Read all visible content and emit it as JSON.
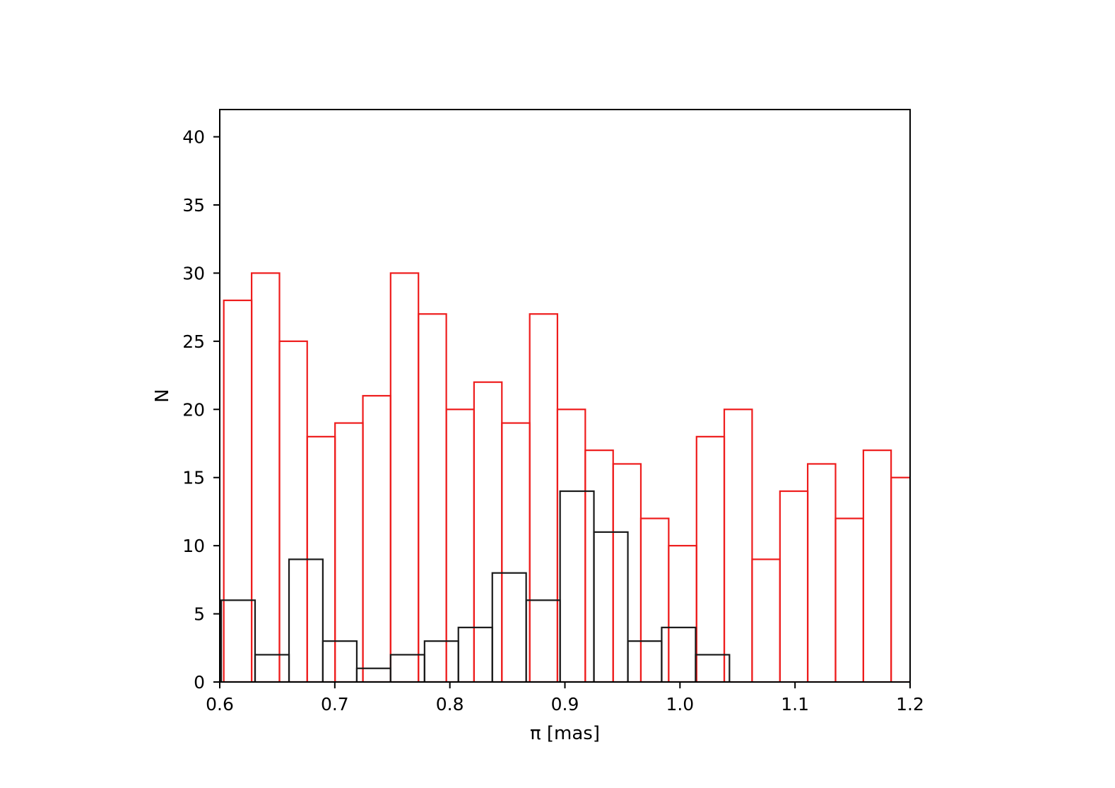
{
  "chart_data": {
    "type": "bar",
    "subtype": "step-histogram",
    "title": "",
    "xlabel": "π [mas]",
    "ylabel": "N",
    "xlim": [
      0.6,
      1.2
    ],
    "ylim": [
      0,
      42
    ],
    "xticks": [
      0.6,
      0.7,
      0.8,
      0.9,
      1.0,
      1.1,
      1.2
    ],
    "xtick_labels": [
      "0.6",
      "0.7",
      "0.8",
      "0.9",
      "1.0",
      "1.1",
      "1.2"
    ],
    "yticks": [
      0,
      5,
      10,
      15,
      20,
      25,
      30,
      35,
      40
    ],
    "ytick_labels": [
      "0",
      "5",
      "10",
      "15",
      "20",
      "25",
      "30",
      "35",
      "40"
    ],
    "grid": false,
    "legend": "none",
    "series": [
      {
        "color": "#ee1c1c",
        "bin_edges": [
          0.6035,
          0.6277,
          0.6519,
          0.676,
          0.7002,
          0.7244,
          0.7485,
          0.7727,
          0.7969,
          0.821,
          0.8452,
          0.8694,
          0.8935,
          0.9177,
          0.9419,
          0.966,
          0.9902,
          1.0144,
          1.0385,
          1.0627,
          1.0869,
          1.111,
          1.1352,
          1.1594,
          1.1835,
          1.2077
        ],
        "counts": [
          28,
          30,
          25,
          18,
          19,
          21,
          30,
          27,
          20,
          22,
          19,
          27,
          20,
          17,
          16,
          12,
          10,
          18,
          20,
          9,
          14,
          16,
          12,
          17,
          15
        ]
      },
      {
        "color": "#1a1a1a",
        "bin_edges": [
          0.6013,
          0.6307,
          0.6602,
          0.6896,
          0.7191,
          0.7485,
          0.778,
          0.8074,
          0.8369,
          0.8663,
          0.8958,
          0.9252,
          0.9547,
          0.9841,
          1.0136,
          1.043
        ],
        "counts": [
          6,
          2,
          9,
          3,
          1,
          2,
          3,
          4,
          8,
          6,
          14,
          11,
          3,
          4,
          2
        ]
      }
    ]
  }
}
